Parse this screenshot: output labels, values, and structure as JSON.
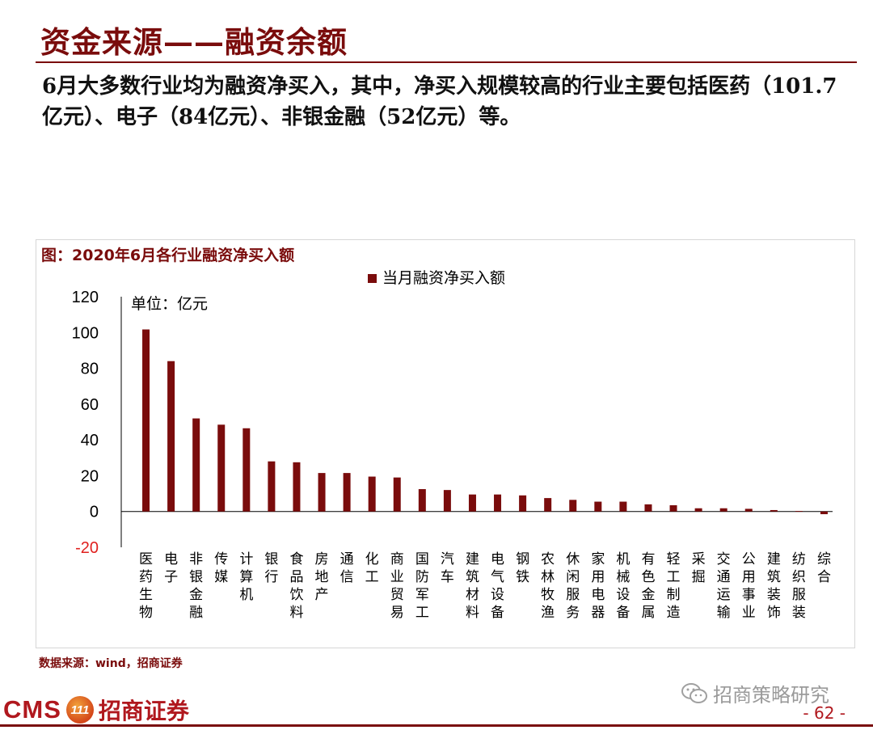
{
  "header": {
    "title": "资金来源——融资余额"
  },
  "body": {
    "paragraph": "6月大多数行业均为融资净买入，其中，净买入规模较高的行业主要包括医药（101.7亿元）、电子（84亿元）、非银金融（52亿元）等。"
  },
  "figure": {
    "caption": "图：2020年6月各行业融资净买入额",
    "source": "数据来源：wind，招商证券"
  },
  "chart_data": {
    "type": "bar",
    "title": "",
    "unit_note": "单位：亿元",
    "xlabel": "",
    "ylabel": "",
    "ylim": [
      -20,
      120
    ],
    "yticks": [
      -20,
      0,
      20,
      40,
      60,
      80,
      100,
      120
    ],
    "grid": false,
    "legend_position": "top-center",
    "bar_color": "#7a0c0c",
    "categories": [
      "医药生物",
      "电子",
      "非银金融",
      "传媒",
      "计算机",
      "银行",
      "食品饮料",
      "房地产",
      "通信",
      "化工",
      "商业贸易",
      "国防军工",
      "汽车",
      "建筑材料",
      "电气设备",
      "钢铁",
      "农林牧渔",
      "休闲服务",
      "家用电器",
      "机械设备",
      "有色金属",
      "轻工制造",
      "采掘",
      "交通运输",
      "公用事业",
      "建筑装饰",
      "纺织服装",
      "综合"
    ],
    "series": [
      {
        "name": "当月融资净买入额",
        "values": [
          101.7,
          84,
          52,
          48.5,
          46.5,
          28,
          27.5,
          21.5,
          21.5,
          19.5,
          19,
          12.5,
          12,
          9.5,
          9.5,
          9,
          7.5,
          6.5,
          5.5,
          5.5,
          4,
          3.5,
          1.8,
          1.8,
          1.5,
          0.8,
          0.3,
          -1.5
        ]
      }
    ]
  },
  "footer": {
    "logo_text": "CMS",
    "logo_badge": "111",
    "logo_cn": "招商证券",
    "watermark": "招商策略研究",
    "page": "- 62 -"
  }
}
